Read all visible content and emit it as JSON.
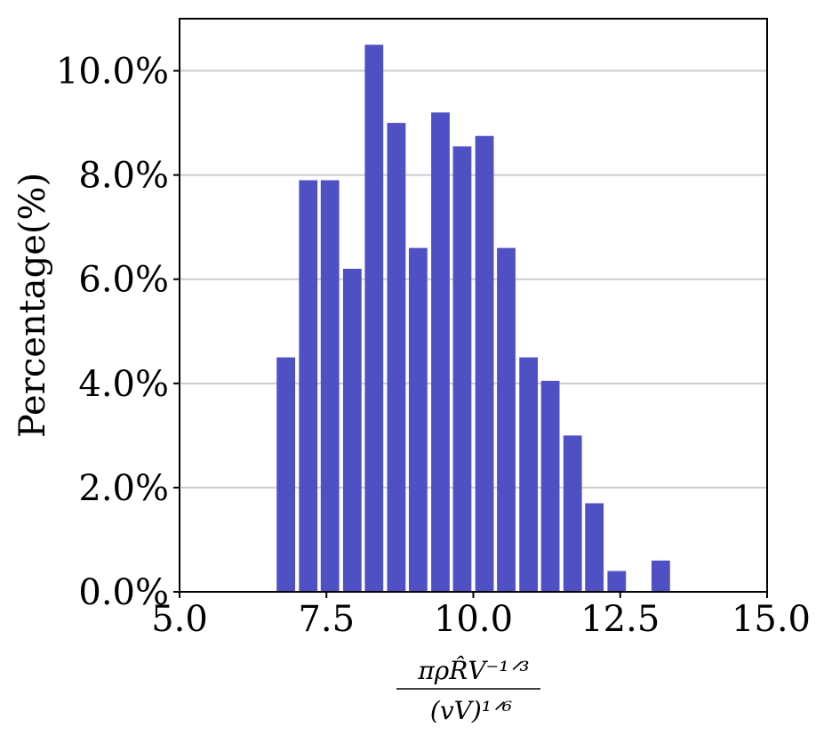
{
  "chart_data": {
    "type": "bar",
    "title": "",
    "xlabel_numerator": "πρR̂V⁻¹ᐟ³",
    "xlabel_denominator": "(vV)¹ᐟ⁶",
    "ylabel": "Percentage(%)",
    "xlim": [
      5.0,
      15.0
    ],
    "ylim": [
      0,
      11
    ],
    "x_ticks": [
      "5.0",
      "7.5",
      "10.0",
      "12.5",
      "15.0"
    ],
    "x_tick_values": [
      5.0,
      7.5,
      10.0,
      12.5,
      15.0
    ],
    "y_ticks": [
      "0.0%",
      "2.0%",
      "4.0%",
      "6.0%",
      "8.0%",
      "10.0%"
    ],
    "y_tick_values": [
      0,
      2,
      4,
      6,
      8,
      10
    ],
    "grid": "horizontal",
    "bar_color": "#5050c5",
    "bin_width": 0.375,
    "bars": [
      {
        "x": 6.81,
        "value": 4.5
      },
      {
        "x": 7.19,
        "value": 7.9
      },
      {
        "x": 7.56,
        "value": 7.9
      },
      {
        "x": 7.94,
        "value": 6.2
      },
      {
        "x": 8.31,
        "value": 10.5
      },
      {
        "x": 8.69,
        "value": 9.0
      },
      {
        "x": 9.06,
        "value": 6.6
      },
      {
        "x": 9.44,
        "value": 9.2
      },
      {
        "x": 9.81,
        "value": 8.55
      },
      {
        "x": 10.19,
        "value": 8.75
      },
      {
        "x": 10.56,
        "value": 6.6
      },
      {
        "x": 10.94,
        "value": 4.5
      },
      {
        "x": 11.31,
        "value": 4.05
      },
      {
        "x": 11.69,
        "value": 3.0
      },
      {
        "x": 12.06,
        "value": 1.7
      },
      {
        "x": 12.44,
        "value": 0.4
      },
      {
        "x": 12.81,
        "value": 0.0
      },
      {
        "x": 13.19,
        "value": 0.6
      }
    ]
  }
}
